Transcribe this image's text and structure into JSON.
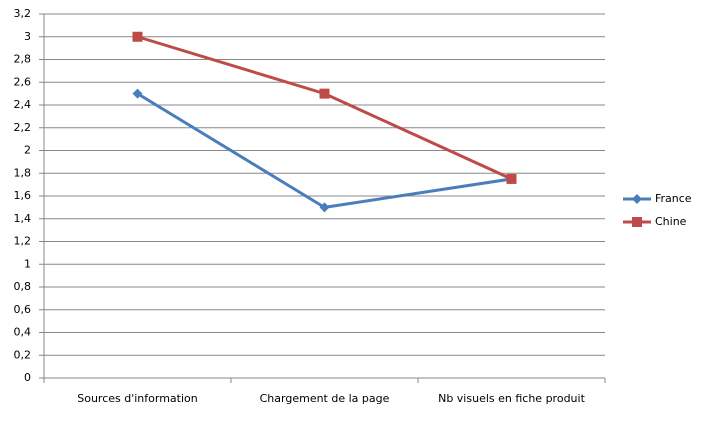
{
  "chart_data": {
    "type": "line",
    "categories": [
      "Sources d'information",
      "Chargement de la page",
      "Nb visuels en fiche produit"
    ],
    "series": [
      {
        "name": "France",
        "color": "#4a7ebb",
        "marker": "diamond",
        "values": [
          2.5,
          1.5,
          1.75
        ]
      },
      {
        "name": "Chine",
        "color": "#be4b48",
        "marker": "square",
        "values": [
          3,
          2.5,
          1.75
        ]
      }
    ],
    "ylim": [
      0,
      3.2
    ],
    "yticks": [
      0,
      {
        "value": 0.2,
        "label": "0,2"
      },
      {
        "value": 0.4,
        "label": "0,4"
      },
      {
        "value": 0.6,
        "label": "0,6"
      },
      {
        "value": 0.8,
        "label": "0,8"
      },
      1,
      {
        "value": 1.2,
        "label": "1,2"
      },
      {
        "value": 1.4,
        "label": "1,4"
      },
      {
        "value": 1.6,
        "label": "1,6"
      },
      {
        "value": 1.8,
        "label": "1,8"
      },
      2,
      {
        "value": 2.2,
        "label": "2,2"
      },
      {
        "value": 2.4,
        "label": "2,4"
      },
      {
        "value": 2.6,
        "label": "2,6"
      },
      {
        "value": 2.8,
        "label": "2,8"
      },
      3,
      {
        "value": 3.2,
        "label": "3,2"
      }
    ],
    "grid": true,
    "legend": "right"
  }
}
